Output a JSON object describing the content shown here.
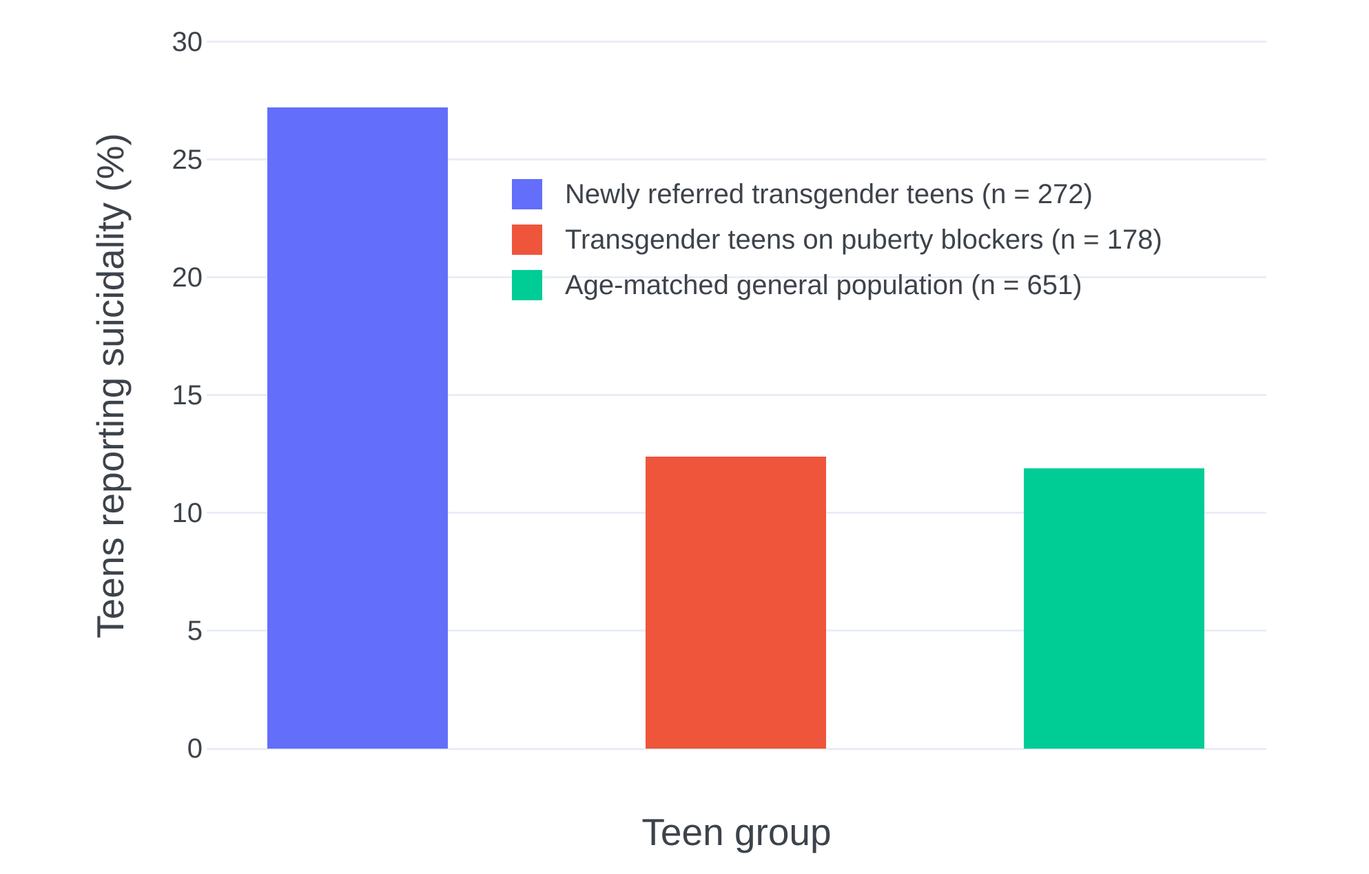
{
  "chart_data": {
    "type": "bar",
    "title": "",
    "categories": [
      "Newly referred transgender teens (n = 272)",
      "Transgender teens on puberty blockers (n = 178)",
      "Age-matched general population (n = 651)"
    ],
    "values": [
      27.2,
      12.4,
      11.9
    ],
    "bar_colors": [
      "#636EFA",
      "#EF553B",
      "#00CC96"
    ],
    "xlabel": "Teen group",
    "ylabel": "Teens reporting suicidality (%)",
    "ylim": [
      0,
      30.6
    ],
    "yticks": [
      0,
      5,
      10,
      15,
      20,
      25,
      30
    ],
    "grid": "horizontal only",
    "legend": {
      "position": "inside plot, upper area left of center",
      "entries": [
        {
          "label": "Newly referred transgender teens (n = 272)",
          "color": "#636EFA"
        },
        {
          "label": "Transgender teens on puberty blockers (n = 178)",
          "color": "#EF553B"
        },
        {
          "label": "Age-matched general population (n = 651)",
          "color": "#00CC96"
        }
      ]
    }
  },
  "colors": {
    "background": "#FFFFFF",
    "gridline": "#E9EEF6",
    "text": "#3D434B"
  }
}
